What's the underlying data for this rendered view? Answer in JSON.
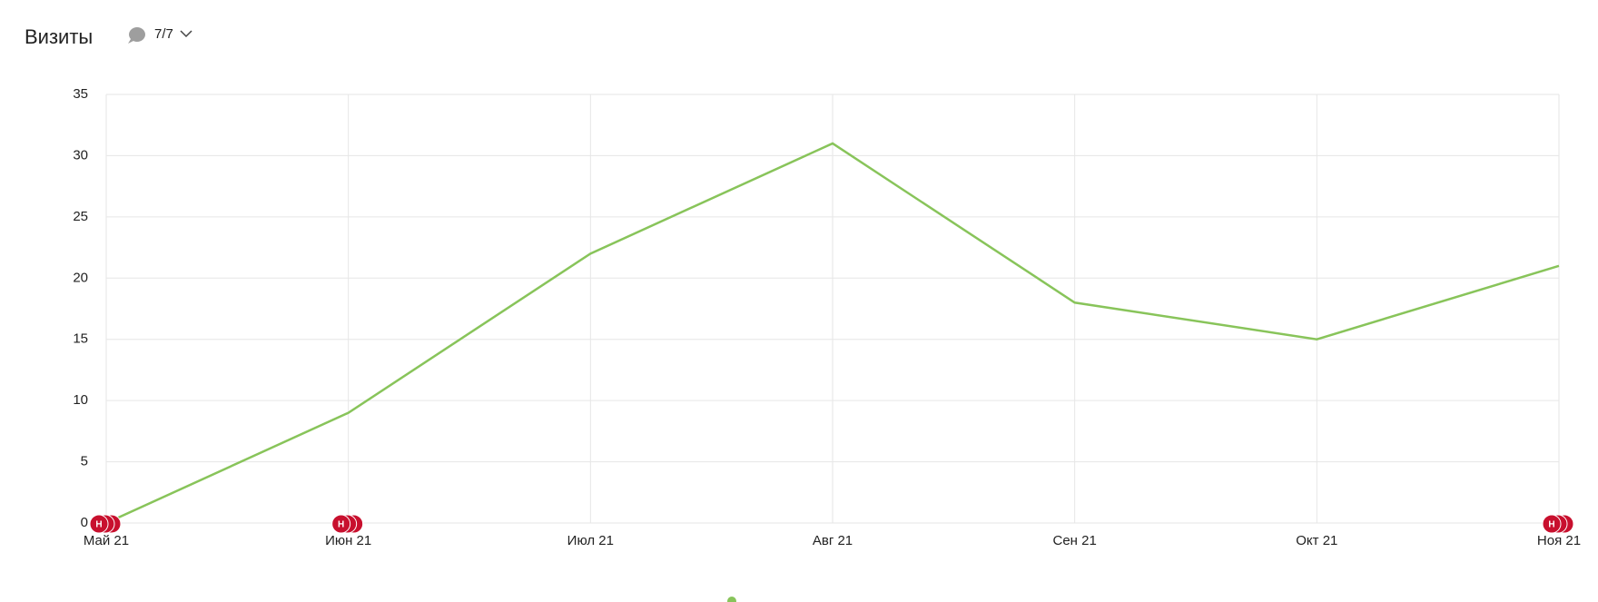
{
  "chart_data": {
    "type": "line",
    "title": "Визиты",
    "annotation_count": "7/7",
    "categories": [
      "Май 21",
      "Июн 21",
      "Июл 21",
      "Авг 21",
      "Сен 21",
      "Окт 21",
      "Ноя 21"
    ],
    "series": [
      {
        "color": "#88c45a",
        "values": [
          0,
          9,
          22,
          31,
          18,
          15,
          21
        ]
      }
    ],
    "ylim": [
      0,
      35
    ],
    "yticks": [
      0,
      5,
      10,
      15,
      20,
      25,
      30,
      35
    ],
    "grid": true,
    "annotations": [
      {
        "x": "Май 21",
        "label": "Н"
      },
      {
        "x": "Июн 21",
        "label": "Н"
      },
      {
        "x": "Ноя 21",
        "label": "Н"
      }
    ]
  }
}
